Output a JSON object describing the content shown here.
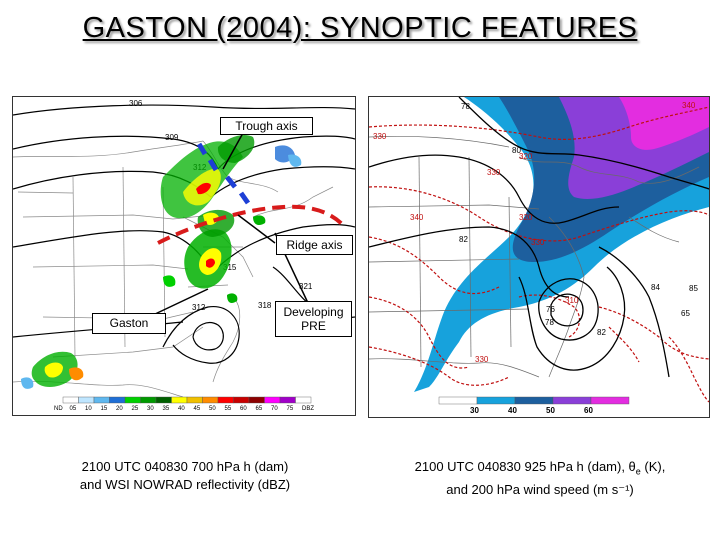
{
  "title": "GASTON (2004): SYNOPTIC FEATURES",
  "left_map": {
    "callouts": {
      "trough": "Trough axis",
      "ridge": "Ridge axis",
      "gaston": "Gaston",
      "pre_line1": "Developing",
      "pre_line2": "PRE"
    },
    "contour_labels": [
      "306",
      "309",
      "312",
      "315",
      "321",
      "312",
      "318"
    ],
    "legend_labels": [
      "ND",
      "05",
      "10",
      "15",
      "20",
      "25",
      "30",
      "35",
      "40",
      "45",
      "50",
      "55",
      "60",
      "65",
      "70",
      "75",
      "DBZ"
    ],
    "legend_colors": [
      "#ffffff",
      "#bfe6ff",
      "#5fb8ef",
      "#1f6fd6",
      "#00d000",
      "#009a00",
      "#006000",
      "#ffff00",
      "#f0c000",
      "#ff8c00",
      "#ff0000",
      "#c80000",
      "#8c0000",
      "#ff00ff",
      "#a000c8",
      "#ffffff"
    ],
    "caption_line1": "2100 UTC 040830 700 hPa h (dam)",
    "caption_line2": "and WSI NOWRAD reflectivity (dBZ)"
  },
  "right_map": {
    "contour_labels": [
      "78",
      "80",
      "82",
      "84",
      "85",
      "65",
      "76",
      "78",
      "82"
    ],
    "theta_labels": [
      "340",
      "330",
      "320",
      "330",
      "340",
      "320",
      "330",
      "310",
      "330"
    ],
    "legend_labels": [
      "30",
      "40",
      "50",
      "60"
    ],
    "legend_colors": [
      "#ffffff",
      "#17a2dc",
      "#1d5f9e",
      "#8a3fd8",
      "#e32de0"
    ],
    "caption_line1_pre": "2100 UTC 040830 925 hPa h (dam), θ",
    "caption_sub": "e",
    "caption_line1_post": " (K),",
    "caption_line2": "and 200 hPa wind speed (m s⁻¹)"
  }
}
